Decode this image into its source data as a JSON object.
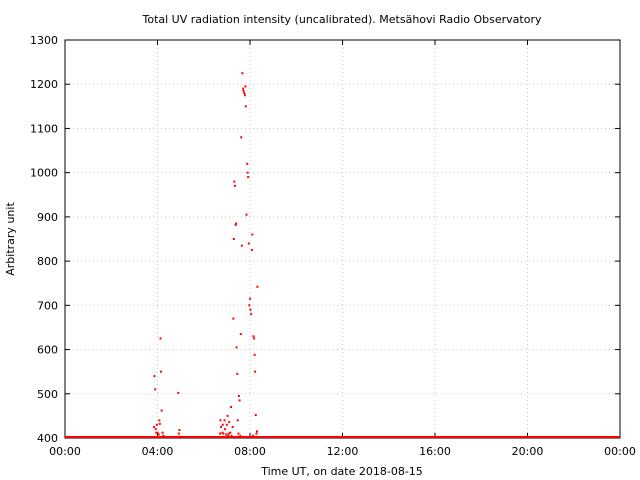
{
  "colors": {
    "points": "#ff0000",
    "grid": "#c8c8c8",
    "axis": "#000000",
    "background": "#ffffff"
  },
  "chart_data": {
    "type": "scatter",
    "title": "Total UV radiation intensity (uncalibrated). Metsähovi Radio Observatory",
    "xlabel": "Time UT, on date 2018-08-15",
    "ylabel": "Arbitrary unit",
    "xlim": [
      0,
      24
    ],
    "ylim": [
      400,
      1300
    ],
    "grid": true,
    "x_ticks": [
      0,
      4,
      8,
      12,
      16,
      20,
      24
    ],
    "x_tick_labels": [
      "00:00",
      "04:00",
      "08:00",
      "12:00",
      "16:00",
      "20:00",
      "00:00"
    ],
    "y_ticks": [
      400,
      500,
      600,
      700,
      800,
      900,
      1000,
      1100,
      1200,
      1300
    ],
    "y_tick_labels": [
      "400",
      "500",
      "600",
      "700",
      "800",
      "900",
      "1000",
      "1100",
      "1200",
      "1300"
    ],
    "baseline": {
      "y": 400,
      "x_from": 0,
      "x_to": 24
    },
    "series": [
      {
        "x": [
          3.85,
          3.87,
          3.9,
          3.92,
          3.95,
          3.97,
          4.0,
          4.05,
          4.08,
          4.1,
          4.13,
          4.15,
          4.18,
          4.22,
          4.25,
          4.3,
          4.9,
          4.92,
          4.95,
          4.97,
          6.7,
          6.72,
          6.75,
          6.78,
          6.8,
          6.82,
          6.85,
          6.88,
          6.9,
          6.92,
          6.95,
          6.97,
          7.0,
          7.03,
          7.05,
          7.08,
          7.1,
          7.12,
          7.15,
          7.18,
          7.2,
          7.25,
          7.28,
          7.3,
          7.32,
          7.35,
          7.38,
          7.4,
          7.42,
          7.45,
          7.47,
          7.5,
          7.52,
          7.55,
          7.58,
          7.6,
          7.62,
          7.65,
          7.67,
          7.7,
          7.72,
          7.75,
          7.78,
          7.8,
          7.82,
          7.85,
          7.88,
          7.9,
          7.92,
          7.95,
          7.97,
          8.0,
          8.02,
          8.05,
          8.08,
          8.1,
          8.13
        ],
        "y": [
          425,
          540,
          510,
          420,
          412,
          430,
          412,
          408,
          440,
          432,
          625,
          550,
          462,
          412,
          405,
          403,
          502,
          410,
          418,
          403,
          410,
          440,
          425,
          402,
          412,
          430,
          410,
          402,
          440,
          420,
          402,
          408,
          430,
          450,
          405,
          410,
          436,
          402,
          412,
          470,
          405,
          425,
          670,
          850,
          980,
          970,
          882,
          885,
          605,
          545,
          440,
          410,
          495,
          485,
          405,
          635,
          1080,
          835,
          1225,
          1190,
          1185,
          1180,
          1175,
          1195,
          1150,
          905,
          1020,
          1000,
          990,
          840,
          700,
          715,
          690,
          680,
          825,
          860,
          405
        ]
      },
      {
        "x": [
          8.15,
          8.18,
          8.2,
          8.22,
          8.25,
          8.28,
          8.3,
          8.32
        ],
        "y": [
          630,
          625,
          588,
          550,
          452,
          410,
          415,
          742
        ]
      }
    ]
  }
}
